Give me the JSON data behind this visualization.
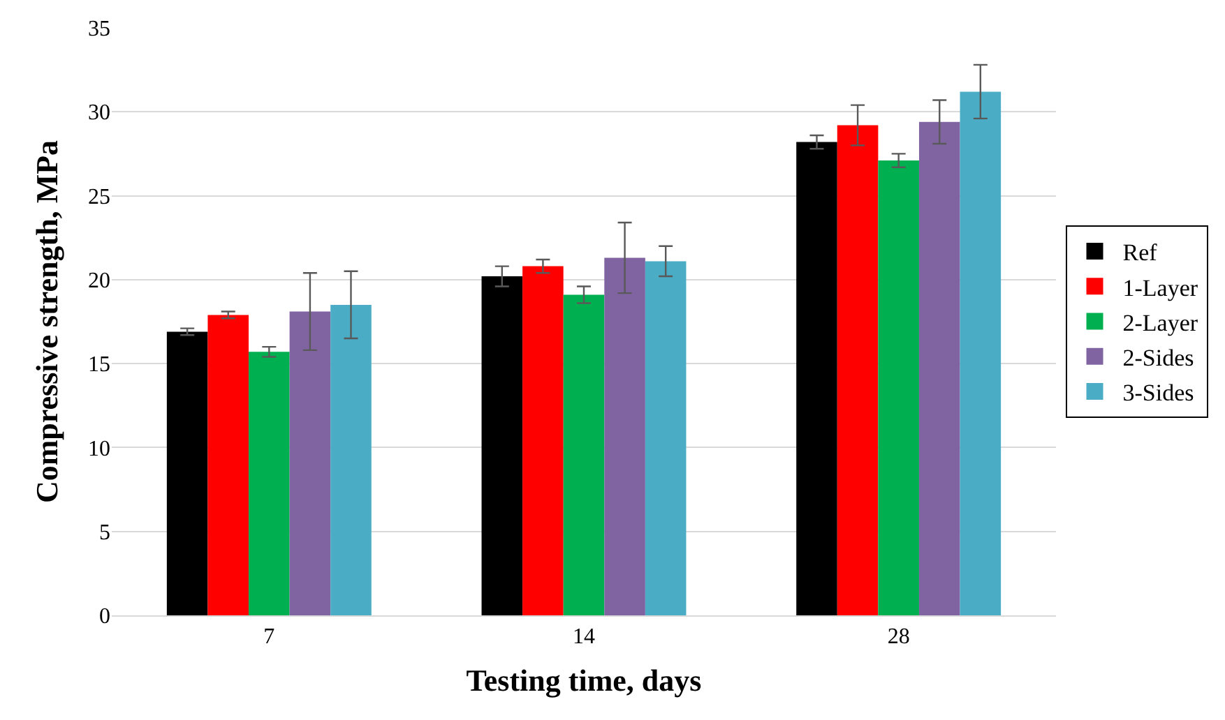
{
  "chart_data": {
    "type": "bar",
    "xlabel": "Testing time, days",
    "ylabel": "Compressive strength, MPa",
    "categories": [
      "7",
      "14",
      "28"
    ],
    "ylim": [
      0,
      35
    ],
    "yticks": [
      0,
      5,
      10,
      15,
      20,
      25,
      30,
      35
    ],
    "grid": "y",
    "legend": "right",
    "series": [
      {
        "name": "Ref",
        "color": "#000000",
        "values": [
          16.9,
          20.2,
          28.2
        ],
        "errors": [
          0.2,
          0.6,
          0.4
        ]
      },
      {
        "name": "1-Layer",
        "color": "#ff0000",
        "values": [
          17.9,
          20.8,
          29.2
        ],
        "errors": [
          0.2,
          0.4,
          1.2
        ]
      },
      {
        "name": "2-Layer",
        "color": "#00b050",
        "values": [
          15.7,
          19.1,
          27.1
        ],
        "errors": [
          0.3,
          0.5,
          0.4
        ]
      },
      {
        "name": "2-Sides",
        "color": "#8064a2",
        "values": [
          18.1,
          21.3,
          29.4
        ],
        "errors": [
          2.3,
          2.1,
          1.3
        ]
      },
      {
        "name": "3-Sides",
        "color": "#4bacc6",
        "values": [
          18.5,
          21.1,
          31.2
        ],
        "errors": [
          2.0,
          0.9,
          1.6
        ]
      }
    ]
  }
}
